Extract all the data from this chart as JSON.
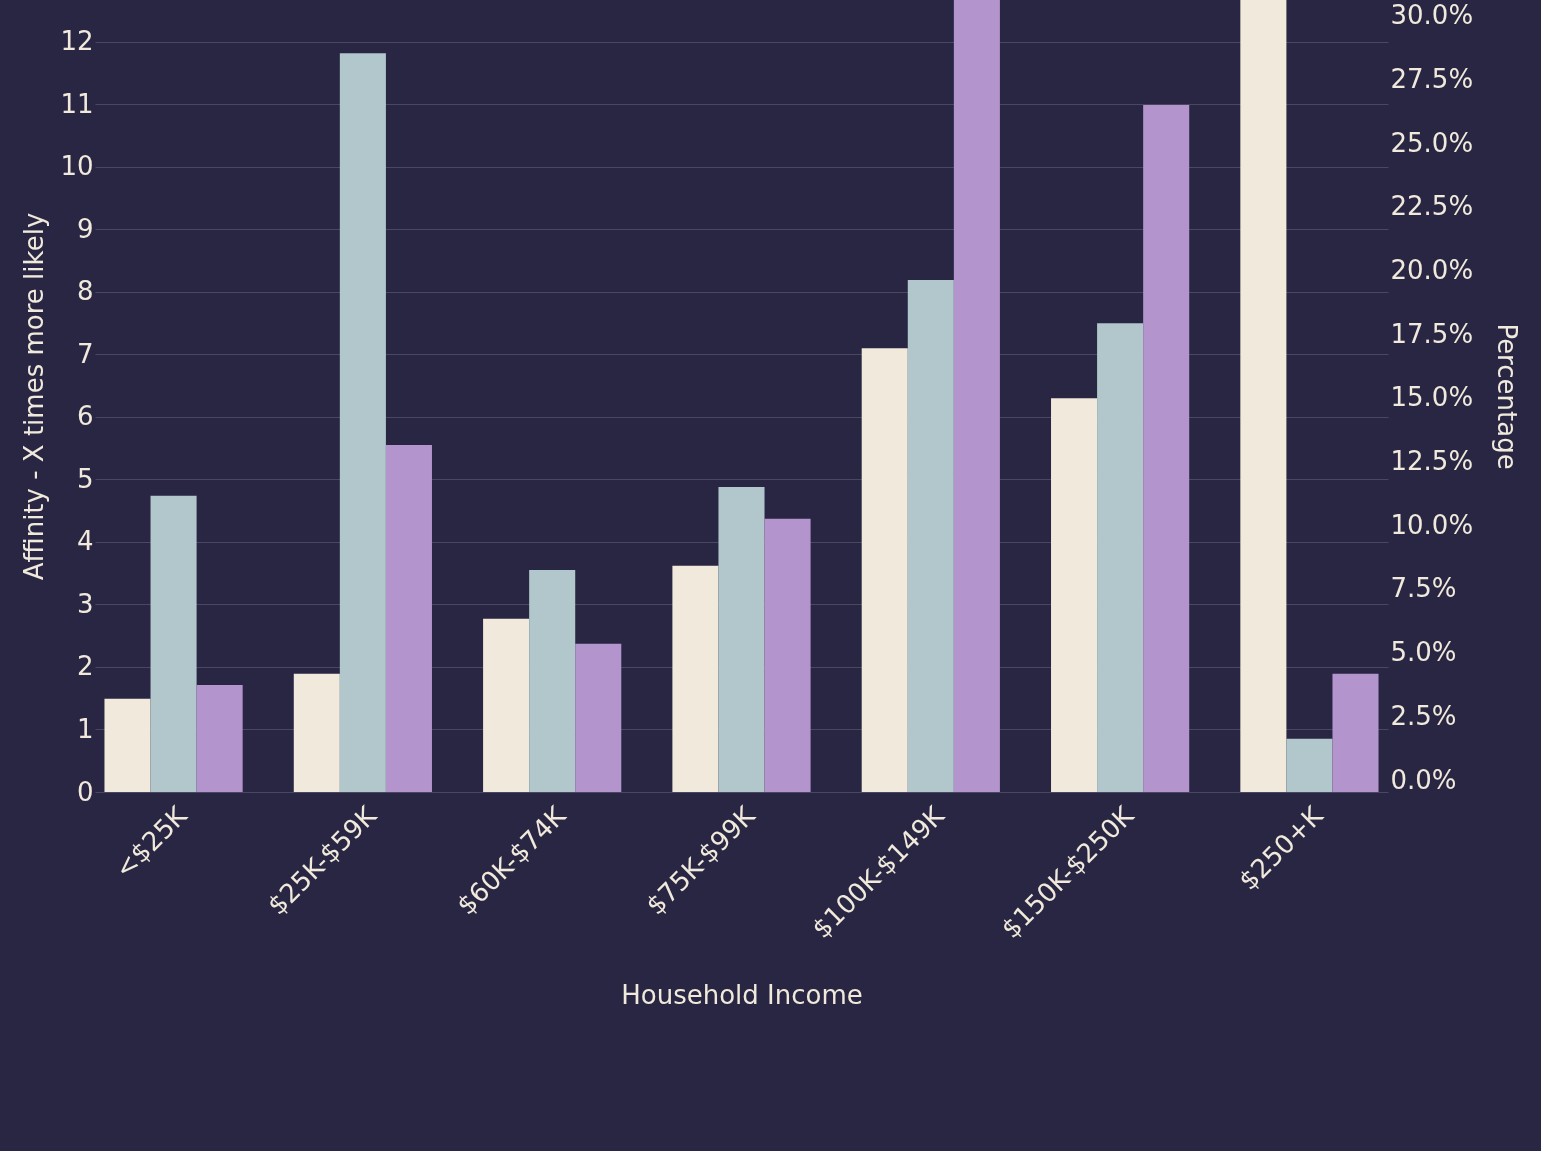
{
  "chart_data": {
    "type": "bar",
    "xlabel": "Household Income",
    "ylabel": "Affinity - X times more likely",
    "y2label": "Percentage",
    "categories": [
      "<$25K",
      "$25K-$59K",
      "$60K-$74K",
      "$75K-$99K",
      "$100K-$149K",
      "$150K-$250K",
      "$250+K"
    ],
    "series": [
      {
        "color": "#f0e9dc",
        "values": [
          1.49,
          1.89,
          2.77,
          3.62,
          7.1,
          6.3,
          12.67
        ]
      },
      {
        "color": "#b1c7cc",
        "values": [
          4.74,
          11.82,
          3.55,
          4.88,
          8.19,
          7.5,
          0.85
        ]
      },
      {
        "color": "#b394cd",
        "values": [
          1.71,
          5.55,
          2.37,
          4.37,
          12.67,
          10.99,
          1.89
        ]
      }
    ],
    "ylim": [
      0,
      12.67
    ],
    "yticks": [
      0,
      1,
      2,
      3,
      4,
      5,
      6,
      7,
      8,
      9,
      10,
      11,
      12
    ],
    "y2lim": [
      -0.47,
      30.62
    ],
    "y2ticks": [
      {
        "value": 0,
        "label": "0.0%"
      },
      {
        "value": 2.5,
        "label": "2.5%"
      },
      {
        "value": 5,
        "label": "5.0%"
      },
      {
        "value": 7.5,
        "label": "7.5%"
      },
      {
        "value": 10,
        "label": "10.0%"
      },
      {
        "value": 12.5,
        "label": "12.5%"
      },
      {
        "value": 15,
        "label": "15.0%"
      },
      {
        "value": 17.5,
        "label": "17.5%"
      },
      {
        "value": 20,
        "label": "20.0%"
      },
      {
        "value": 22.5,
        "label": "22.5%"
      },
      {
        "value": 25,
        "label": "25.0%"
      },
      {
        "value": 27.5,
        "label": "27.5%"
      },
      {
        "value": 30,
        "label": "30.0%"
      }
    ],
    "grid": "y"
  }
}
